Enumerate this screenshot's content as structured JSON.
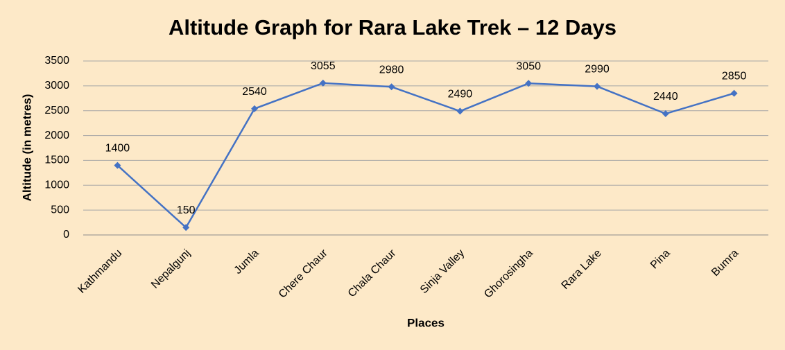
{
  "chart_data": {
    "type": "line",
    "title": "Altitude Graph for Rara Lake Trek – 12 Days",
    "x_label": "Places",
    "y_label": "Altitude (in metres)",
    "categories": [
      "Kathmandu",
      "Nepalgunj",
      "Jumla",
      "Chere Chaur",
      "Chala Chaur",
      "Sinja Valley",
      "Ghorosingha",
      "Rara Lake",
      "Pina",
      "Bumra"
    ],
    "values": [
      1400,
      150,
      2540,
      3055,
      2980,
      2490,
      3050,
      2990,
      2440,
      2850
    ],
    "color": "#4472c4",
    "ylim": [
      0,
      3500
    ],
    "yticks": [
      0,
      500,
      1000,
      1500,
      2000,
      2500,
      3000,
      3500
    ],
    "grid": true,
    "data_labels": true
  }
}
